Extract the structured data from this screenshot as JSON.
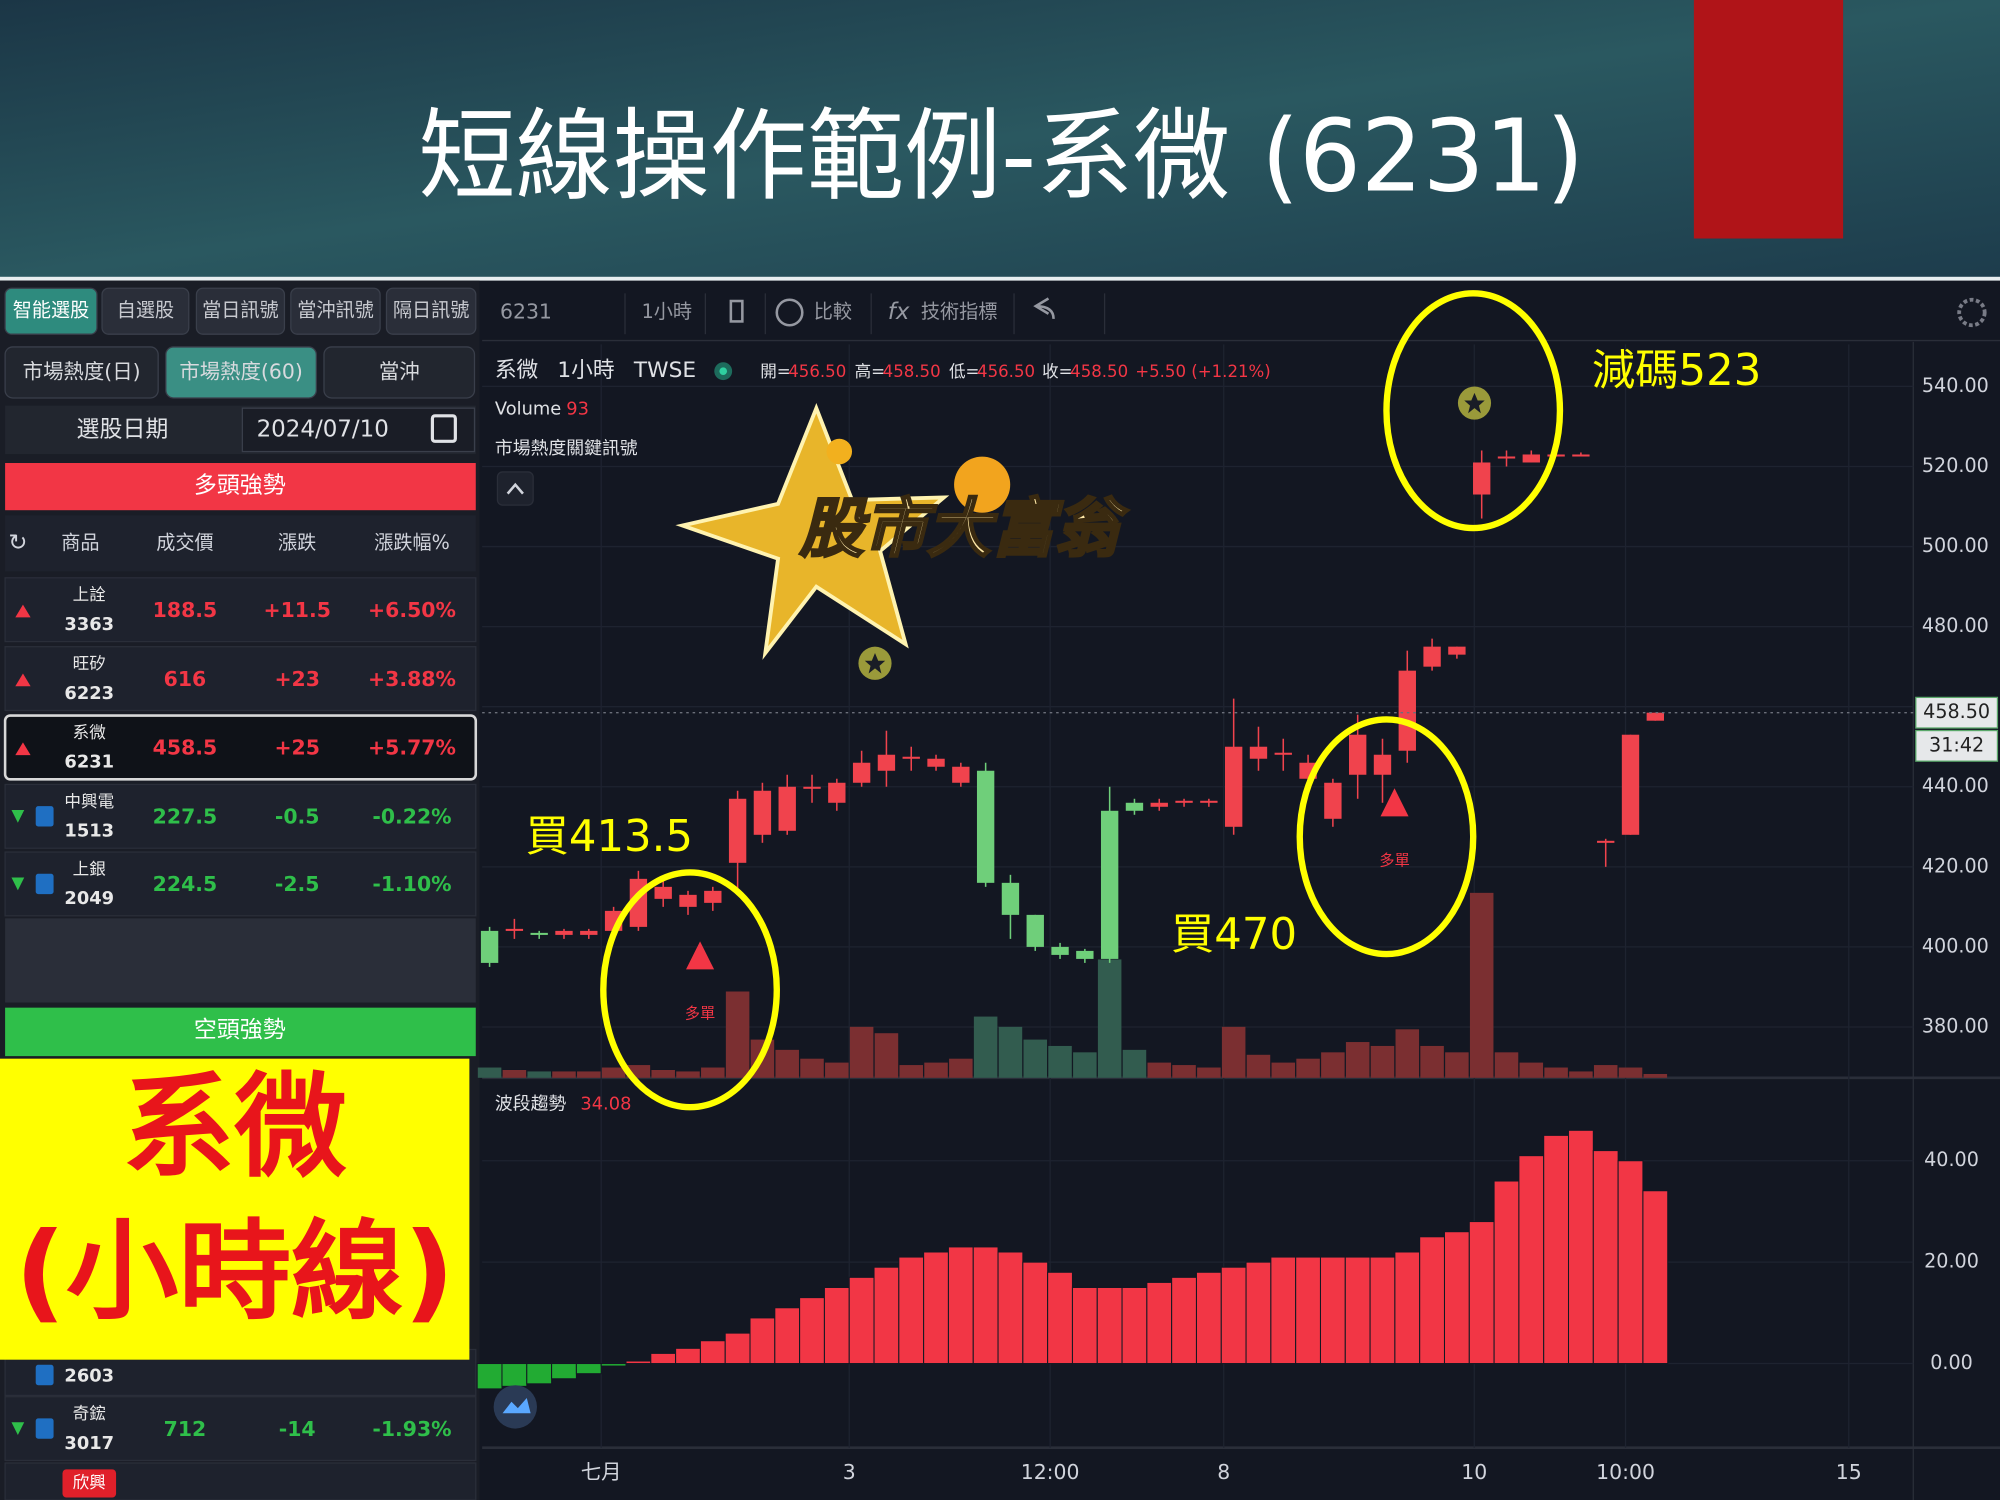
{
  "header": {
    "title": "短線操作範例-系微 (6231)"
  },
  "sidebar": {
    "tabs": [
      "智能選股",
      "自選股",
      "當日訊號",
      "當沖訊號",
      "隔日訊號"
    ],
    "subtabs": [
      "市場熱度(日)",
      "市場熱度(60)",
      "當沖"
    ],
    "date_label": "選股日期",
    "date": "2024/07/10",
    "bull_title": "多頭強勢",
    "columns": [
      "商品",
      "成交價",
      "漲跌",
      "漲跌幅%"
    ],
    "bull_rows": [
      [
        "上詮",
        "3363",
        "188.5",
        "+11.5",
        "+6.50%"
      ],
      [
        "旺矽",
        "6223",
        "616",
        "+23",
        "+3.88%"
      ],
      [
        "系微",
        "6231",
        "458.5",
        "+25",
        "+5.77%"
      ],
      [
        "中興電",
        "1513",
        "227.5",
        "-0.5",
        "-0.22%"
      ],
      [
        "上銀",
        "2049",
        "224.5",
        "-2.5",
        "-1.10%"
      ]
    ],
    "bear_title": "空頭強勢",
    "partial_code": "2603",
    "bear_rows": [
      [
        "奇鋐",
        "3017",
        "712",
        "-14",
        "-1.93%"
      ]
    ],
    "partial_name": "欣興",
    "overlay": [
      "系微",
      "(小時線)"
    ]
  },
  "toolbar": {
    "symbol": "6231",
    "interval": "1小時",
    "compare": "比較",
    "indicators": "技術指標"
  },
  "chart_data": {
    "type": "candlestick",
    "legend": {
      "name": "系微",
      "interval": "1小時",
      "exchange": "TWSE",
      "open_label": "開=",
      "open": "456.50",
      "high_label": "高=",
      "high": "458.50",
      "low_label": "低=",
      "low": "456.50",
      "close_label": "收=",
      "close": "458.50",
      "change": "+5.50 (+1.21%)"
    },
    "signals_title": "市場熱度關鍵訊號",
    "logo_text": "股市大富翁",
    "x": [
      0,
      1,
      2,
      3,
      4,
      5,
      6,
      7,
      8,
      9,
      10,
      11,
      12,
      13,
      14,
      15,
      16,
      17,
      18,
      19,
      20,
      21,
      22,
      23,
      24,
      25,
      26,
      27,
      28,
      29,
      30,
      31,
      32,
      33,
      34,
      35,
      36,
      37,
      38,
      39,
      40,
      41,
      42,
      43,
      44,
      45,
      46,
      47
    ],
    "open": [
      404,
      404,
      403.5,
      403,
      403,
      404,
      405,
      412,
      410,
      411,
      421,
      428,
      429,
      439.5,
      436,
      441,
      444,
      447,
      445,
      441,
      444,
      416,
      408,
      400,
      399,
      434,
      436,
      435,
      436,
      436,
      430,
      447,
      448,
      442,
      432,
      443,
      443,
      449,
      470,
      473,
      513,
      522,
      521,
      523,
      523,
      426,
      428,
      456.5
    ],
    "high": [
      405,
      407,
      404,
      404.5,
      404.5,
      410,
      419,
      417,
      414,
      415,
      439,
      441,
      443,
      443,
      442,
      449,
      454,
      450,
      448,
      446,
      446,
      418,
      408,
      401,
      399.5,
      440,
      437,
      437,
      437,
      437,
      462,
      455,
      452,
      448,
      442,
      458,
      452,
      474,
      477,
      475,
      524,
      524,
      524,
      523.5,
      523.5,
      427,
      453,
      458.5
    ],
    "low": [
      395,
      402,
      402,
      402,
      402,
      403,
      404,
      410,
      408,
      409,
      414,
      426,
      428,
      436,
      434,
      440,
      440,
      444,
      444,
      440,
      415,
      402,
      399,
      397,
      396,
      396,
      433,
      434,
      435,
      435,
      428,
      444,
      444,
      440,
      430,
      437,
      436,
      446,
      469,
      472,
      507,
      520,
      521,
      522.5,
      522.5,
      420,
      428,
      456.5
    ],
    "close": [
      396,
      404.5,
      403,
      404,
      404,
      409,
      417,
      415,
      413,
      414,
      437,
      439,
      440,
      440,
      441,
      446,
      448,
      447.5,
      447,
      445,
      416,
      408,
      400,
      398,
      397,
      397,
      434,
      436,
      436.5,
      436.5,
      450,
      450,
      448.5,
      446,
      441,
      453,
      448,
      469,
      475,
      475,
      521,
      522.5,
      523,
      523,
      523,
      426.5,
      453,
      458.5
    ],
    "volume": {
      "name": "Volume",
      "values": [
        250,
        190,
        155,
        155,
        155,
        250,
        310,
        190,
        155,
        250,
        2100,
        930,
        680,
        465,
        370,
        1240,
        1085,
        310,
        370,
        465,
        1490,
        1240,
        930,
        775,
        620,
        2880,
        680,
        370,
        310,
        250,
        1240,
        560,
        370,
        465,
        620,
        870,
        775,
        1180,
        775,
        620,
        4500,
        620,
        370,
        250,
        155,
        310,
        250,
        93
      ]
    },
    "trend": {
      "name": "波段趨勢",
      "values": [
        -5,
        -4.5,
        -4,
        -3,
        -2,
        -0.5,
        0.5,
        2,
        3,
        4.5,
        6,
        9,
        11,
        13,
        15,
        17,
        19,
        21,
        22,
        23,
        23,
        22,
        20,
        18,
        15,
        15,
        15,
        16,
        17,
        18,
        19,
        20,
        21,
        21,
        21,
        21,
        21,
        22,
        25,
        26,
        28,
        36,
        41,
        45,
        46,
        42,
        40,
        34.08
      ],
      "ylim": [
        -16.6,
        55.6
      ],
      "yticks": [
        {
          "value": 0,
          "label": "0.00"
        },
        {
          "value": 20,
          "label": "20.00"
        },
        {
          "value": 40,
          "label": "40.00"
        }
      ]
    },
    "ylim": [
      367.3,
      550.5
    ],
    "yticks": [
      {
        "value": 380,
        "label": "380.00"
      },
      {
        "value": 400,
        "label": "400.00"
      },
      {
        "value": 420,
        "label": "420.00"
      },
      {
        "value": 440,
        "label": "440.00"
      },
      {
        "value": 460,
        "label": "460.00"
      },
      {
        "value": 480,
        "label": "480.00"
      },
      {
        "value": 500,
        "label": "500.00"
      },
      {
        "value": 520,
        "label": "520.00"
      },
      {
        "value": 540,
        "label": "540.00"
      }
    ],
    "xlim": [
      -0.3,
      57.4
    ],
    "xticks": [
      {
        "value": 4.5,
        "label": "七月"
      },
      {
        "value": 14.5,
        "label": "3"
      },
      {
        "value": 22.6,
        "label": "12:00"
      },
      {
        "value": 29.6,
        "label": "8"
      },
      {
        "value": 39.7,
        "label": "10"
      },
      {
        "value": 45.8,
        "label": "10:00"
      },
      {
        "value": 54.8,
        "label": "15"
      }
    ],
    "last_price_label": "458.50",
    "countdown": "31:42",
    "up_color": "#f0434d",
    "down_color": "#6fcf7a",
    "volume_up_color": "#7b2f31",
    "volume_down_color": "#325c4f",
    "grid": true,
    "signals": [
      {
        "x": 9,
        "label": "多單"
      },
      {
        "x": 37,
        "label": "多單"
      }
    ],
    "annotations": [
      "減碼523",
      "買413.5",
      "買470"
    ]
  }
}
